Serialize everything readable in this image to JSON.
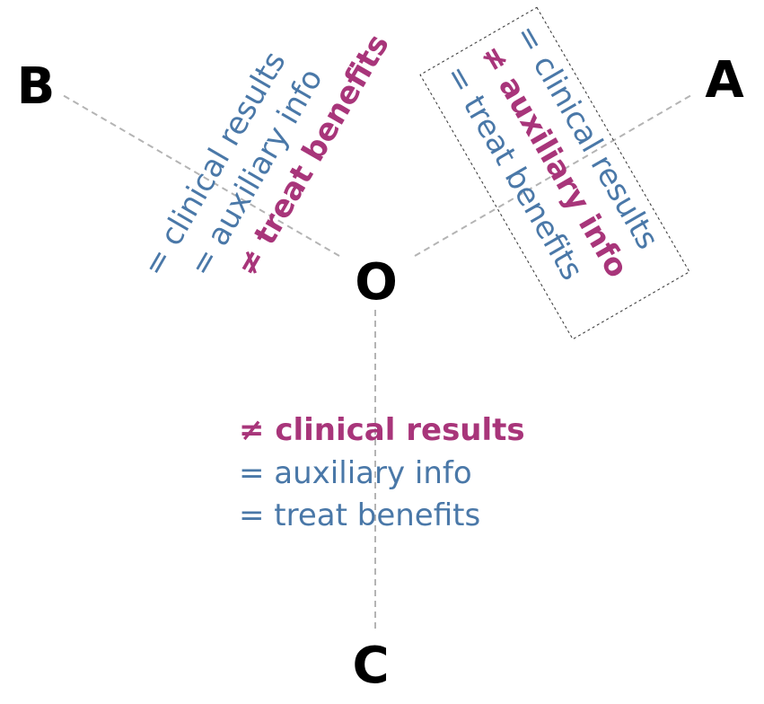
{
  "points": {
    "origin": "O",
    "a": "A",
    "b": "B",
    "c": "C"
  },
  "branch_b": {
    "line1": "= clinical results",
    "line2": "= auxiliary info",
    "line3": "≠ treat benefits"
  },
  "branch_a": {
    "line1": "= clinical results",
    "line2": "≠ auxiliary info",
    "line3": "= treat benefits"
  },
  "branch_c": {
    "line1": "≠ clinical results",
    "line2": "= auxiliary info",
    "line3": "= treat benefits"
  },
  "colors": {
    "same": "#4a78a8",
    "different": "#a8357a",
    "axis": "#b4b4b4"
  }
}
